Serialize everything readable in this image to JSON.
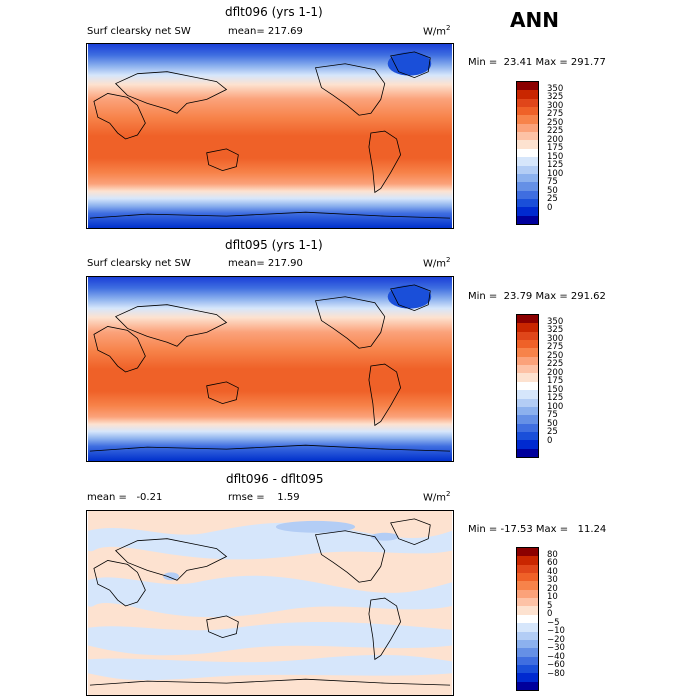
{
  "header": {
    "season": "ANN"
  },
  "panels": [
    {
      "title": "dflt096 (yrs 1-1)",
      "variable": "Surf clearsky net SW",
      "stat1": "mean= 217.69",
      "stat2": "",
      "units_base": "W/m",
      "units_exp": "2",
      "minmax": "Min =  23.41 Max = 291.77",
      "kind": "abs"
    },
    {
      "title": "dflt095 (yrs 1-1)",
      "variable": "Surf clearsky net SW",
      "stat1": "mean= 217.90",
      "stat2": "",
      "units_base": "W/m",
      "units_exp": "2",
      "minmax": "Min =  23.79 Max = 291.62",
      "kind": "abs"
    },
    {
      "title": "dflt096 - dflt095",
      "variable": "",
      "stat1": "mean =   -0.21",
      "stat2": "rmse =    1.59",
      "units_base": "W/m",
      "units_exp": "2",
      "minmax": "Min = -17.53 Max =   11.24",
      "kind": "diff"
    }
  ],
  "colorbars": {
    "abs": {
      "labels": [
        "350",
        "325",
        "300",
        "275",
        "250",
        "225",
        "200",
        "175",
        "150",
        "125",
        "100",
        "75",
        "50",
        "25",
        "0"
      ],
      "colors": [
        "#8b0000",
        "#c92600",
        "#e0461a",
        "#ef6128",
        "#f7834a",
        "#fba27a",
        "#fdc2a6",
        "#fde2d0",
        "#ffffff",
        "#d6e6fb",
        "#b3cdf5",
        "#8cb1ee",
        "#6590e6",
        "#3f6ee0",
        "#1a4fd9",
        "#002ad0",
        "#00009c"
      ]
    },
    "diff": {
      "labels": [
        "80",
        "60",
        "40",
        "30",
        "20",
        "10",
        "5",
        "0",
        "−5",
        "−10",
        "−20",
        "−30",
        "−40",
        "−60",
        "−80"
      ],
      "colors": [
        "#8b0000",
        "#c92600",
        "#e0461a",
        "#ef6128",
        "#f7834a",
        "#fba27a",
        "#fdc2a6",
        "#fde2d0",
        "#ffffff",
        "#d6e6fb",
        "#b3cdf5",
        "#8cb1ee",
        "#6590e6",
        "#3f6ee0",
        "#1a4fd9",
        "#002ad0",
        "#00009c"
      ]
    }
  }
}
